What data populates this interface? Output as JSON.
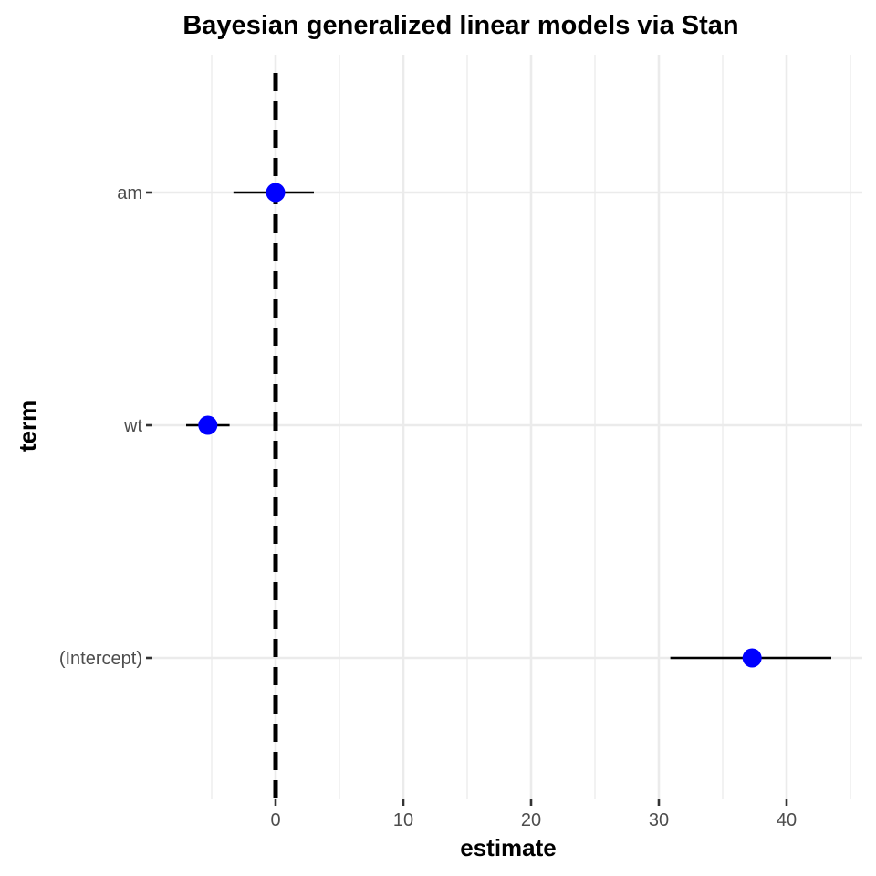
{
  "chart_data": {
    "type": "scatter",
    "title": "Bayesian generalized linear models via Stan",
    "xlabel": "estimate",
    "ylabel": "term",
    "xlim": [
      -5.9,
      45.1
    ],
    "x_ticks": [
      0,
      10,
      20,
      30,
      40
    ],
    "x_minor_ticks": [
      -5,
      5,
      15,
      25,
      35,
      45
    ],
    "grid": true,
    "reference_line": {
      "x": 0,
      "style": "dashed",
      "color": "#000000"
    },
    "point_color": "#0000ff",
    "terms": [
      {
        "label": "am",
        "estimate": 0.0,
        "low": -3.3,
        "high": 3.0
      },
      {
        "label": "wt",
        "estimate": -5.3,
        "low": -7.0,
        "high": -3.6
      },
      {
        "label": "(Intercept)",
        "estimate": 37.3,
        "low": 30.9,
        "high": 43.5
      }
    ]
  }
}
